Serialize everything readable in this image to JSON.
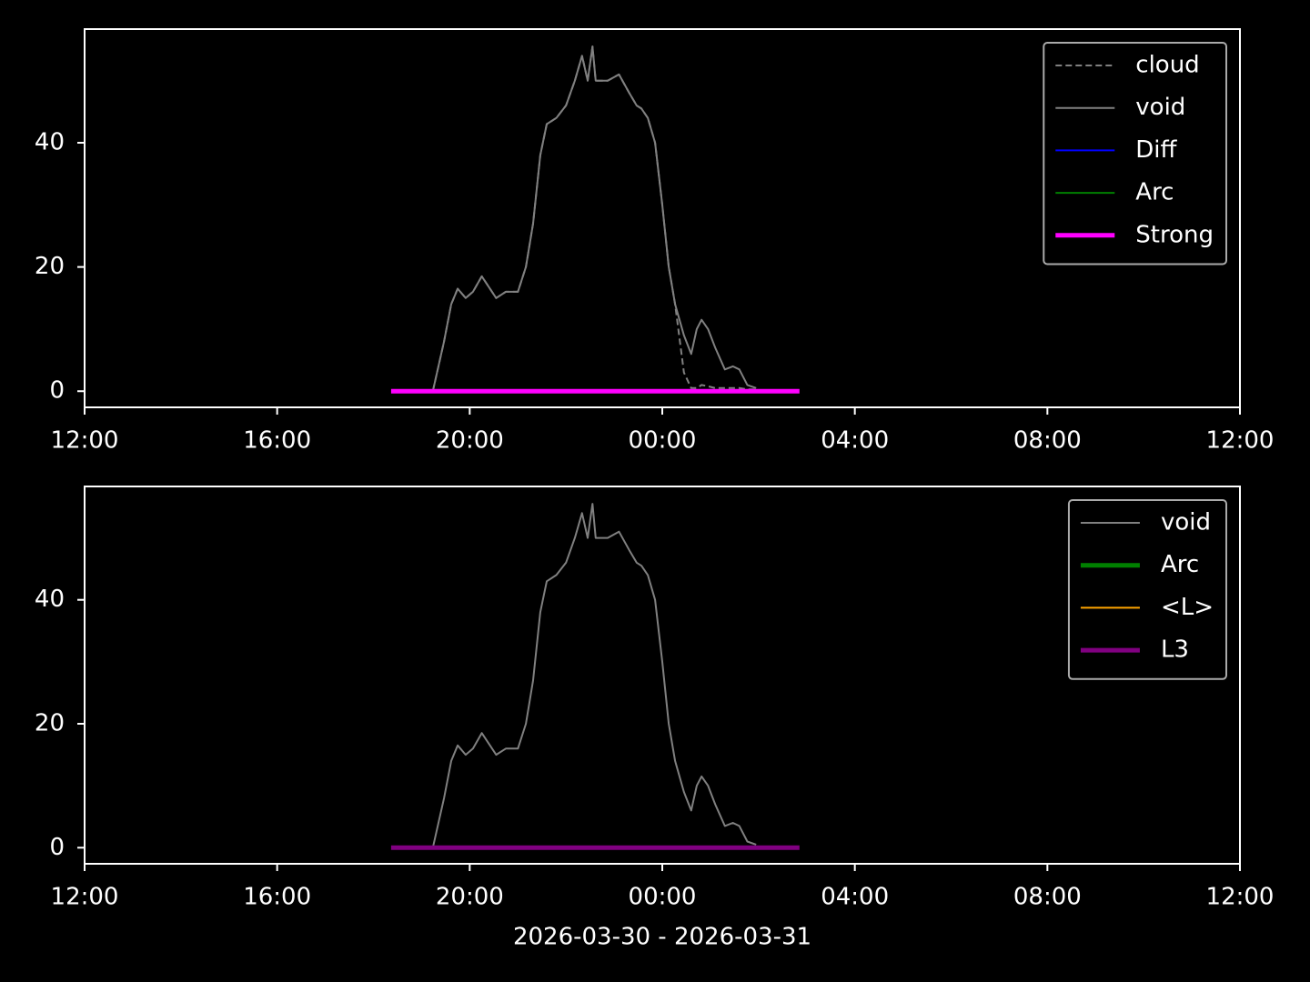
{
  "chart_data": [
    {
      "type": "line",
      "xlim": [
        "2026-03-30T12:00",
        "2026-03-31T12:00"
      ],
      "xticks": [
        {
          "value": "2026-03-30T12:00",
          "label": "12:00"
        },
        {
          "value": "2026-03-30T16:00",
          "label": "16:00"
        },
        {
          "value": "2026-03-30T20:00",
          "label": "20:00"
        },
        {
          "value": "2026-03-31T00:00",
          "label": "00:00"
        },
        {
          "value": "2026-03-31T04:00",
          "label": "04:00"
        },
        {
          "value": "2026-03-31T08:00",
          "label": "08:00"
        },
        {
          "value": "2026-03-31T12:00",
          "label": "12:00"
        }
      ],
      "ylim": [
        -2.6,
        58.3
      ],
      "yticks": [
        0,
        20,
        40
      ],
      "legend": "upper right",
      "x": [
        "2026-03-30T19:14",
        "2026-03-30T19:28",
        "2026-03-30T19:37",
        "2026-03-30T19:45",
        "2026-03-30T19:55",
        "2026-03-30T20:04",
        "2026-03-30T20:15",
        "2026-03-30T20:33",
        "2026-03-30T20:45",
        "2026-03-30T21:00",
        "2026-03-30T21:10",
        "2026-03-30T21:19",
        "2026-03-30T21:28",
        "2026-03-30T21:36",
        "2026-03-30T21:48",
        "2026-03-30T22:00",
        "2026-03-30T22:11",
        "2026-03-30T22:20",
        "2026-03-30T22:27",
        "2026-03-30T22:33",
        "2026-03-30T22:37",
        "2026-03-30T22:52",
        "2026-03-30T23:06",
        "2026-03-30T23:19",
        "2026-03-30T23:28",
        "2026-03-30T23:34",
        "2026-03-30T23:42",
        "2026-03-30T23:51",
        "2026-03-31T00:00",
        "2026-03-31T00:08",
        "2026-03-31T00:16",
        "2026-03-31T00:27",
        "2026-03-31T00:36",
        "2026-03-31T00:43",
        "2026-03-31T00:49",
        "2026-03-31T00:57",
        "2026-03-31T01:06",
        "2026-03-31T01:18",
        "2026-03-31T01:28",
        "2026-03-31T01:36",
        "2026-03-31T01:46",
        "2026-03-31T01:57"
      ],
      "series": [
        {
          "name": "cloud",
          "color": "#808080",
          "linestyle": "dashed",
          "linewidth": 2,
          "values": [
            0,
            8,
            14,
            16.5,
            15,
            16,
            18.5,
            15,
            16,
            16,
            20,
            27,
            38,
            43,
            44,
            46,
            50,
            54,
            50,
            55.5,
            50,
            50,
            51,
            48,
            46,
            45.5,
            44,
            40,
            30,
            20,
            14,
            3,
            0.5,
            0.5,
            1,
            0.8,
            0.5,
            0.5,
            0.5,
            0.5,
            0.3,
            0.3
          ]
        },
        {
          "name": "void",
          "color": "#808080",
          "linestyle": "solid",
          "linewidth": 2,
          "values": [
            0,
            8,
            14,
            16.5,
            15,
            16,
            18.5,
            15,
            16,
            16,
            20,
            27,
            38,
            43,
            44,
            46,
            50,
            54,
            50,
            55.5,
            50,
            50,
            51,
            48,
            46,
            45.5,
            44,
            40,
            30,
            20,
            14,
            9,
            6,
            10,
            11.5,
            10,
            7,
            3.5,
            4,
            3.5,
            1,
            0.5
          ]
        },
        {
          "name": "Diff",
          "color": "#0000ff",
          "linestyle": "solid",
          "linewidth": 2,
          "x": [],
          "values": []
        },
        {
          "name": "Arc",
          "color": "#008000",
          "linestyle": "solid",
          "linewidth": 2,
          "x": [],
          "values": []
        },
        {
          "name": "Strong",
          "color": "#ff00ff",
          "linestyle": "solid",
          "linewidth": 5,
          "x": [
            "2026-03-30T18:22",
            "2026-03-31T02:51"
          ],
          "values": [
            0,
            0
          ]
        }
      ]
    },
    {
      "type": "line",
      "xlim": [
        "2026-03-30T12:00",
        "2026-03-31T12:00"
      ],
      "xticks": [
        {
          "value": "2026-03-30T12:00",
          "label": "12:00"
        },
        {
          "value": "2026-03-30T16:00",
          "label": "16:00"
        },
        {
          "value": "2026-03-30T20:00",
          "label": "20:00"
        },
        {
          "value": "2026-03-31T00:00",
          "label": "00:00"
        },
        {
          "value": "2026-03-31T04:00",
          "label": "04:00"
        },
        {
          "value": "2026-03-31T08:00",
          "label": "08:00"
        },
        {
          "value": "2026-03-31T12:00",
          "label": "12:00"
        }
      ],
      "ylim": [
        -2.6,
        58.3
      ],
      "yticks": [
        0,
        20,
        40
      ],
      "xlabel": "2026-03-30 - 2026-03-31",
      "legend": "upper right",
      "x": [
        "2026-03-30T19:14",
        "2026-03-30T19:28",
        "2026-03-30T19:37",
        "2026-03-30T19:45",
        "2026-03-30T19:55",
        "2026-03-30T20:04",
        "2026-03-30T20:15",
        "2026-03-30T20:33",
        "2026-03-30T20:45",
        "2026-03-30T21:00",
        "2026-03-30T21:10",
        "2026-03-30T21:19",
        "2026-03-30T21:28",
        "2026-03-30T21:36",
        "2026-03-30T21:48",
        "2026-03-30T22:00",
        "2026-03-30T22:11",
        "2026-03-30T22:20",
        "2026-03-30T22:27",
        "2026-03-30T22:33",
        "2026-03-30T22:37",
        "2026-03-30T22:52",
        "2026-03-30T23:06",
        "2026-03-30T23:19",
        "2026-03-30T23:28",
        "2026-03-30T23:34",
        "2026-03-30T23:42",
        "2026-03-30T23:51",
        "2026-03-31T00:00",
        "2026-03-31T00:08",
        "2026-03-31T00:16",
        "2026-03-31T00:27",
        "2026-03-31T00:36",
        "2026-03-31T00:43",
        "2026-03-31T00:49",
        "2026-03-31T00:57",
        "2026-03-31T01:06",
        "2026-03-31T01:18",
        "2026-03-31T01:28",
        "2026-03-31T01:36",
        "2026-03-31T01:46",
        "2026-03-31T01:57"
      ],
      "series": [
        {
          "name": "void",
          "color": "#808080",
          "linestyle": "solid",
          "linewidth": 2,
          "values": [
            0,
            8,
            14,
            16.5,
            15,
            16,
            18.5,
            15,
            16,
            16,
            20,
            27,
            38,
            43,
            44,
            46,
            50,
            54,
            50,
            55.5,
            50,
            50,
            51,
            48,
            46,
            45.5,
            44,
            40,
            30,
            20,
            14,
            9,
            6,
            10,
            11.5,
            10,
            7,
            3.5,
            4,
            3.5,
            1,
            0.5
          ]
        },
        {
          "name": "Arc",
          "color": "#008000",
          "linestyle": "solid",
          "linewidth": 5,
          "x": [],
          "values": []
        },
        {
          "name": "<L>",
          "color": "#ffa500",
          "linestyle": "solid",
          "linewidth": 2,
          "x": [],
          "values": []
        },
        {
          "name": "L3",
          "color": "#800080",
          "linestyle": "solid",
          "linewidth": 5,
          "x": [
            "2026-03-30T18:22",
            "2026-03-31T02:51"
          ],
          "values": [
            0,
            0
          ]
        }
      ]
    }
  ]
}
